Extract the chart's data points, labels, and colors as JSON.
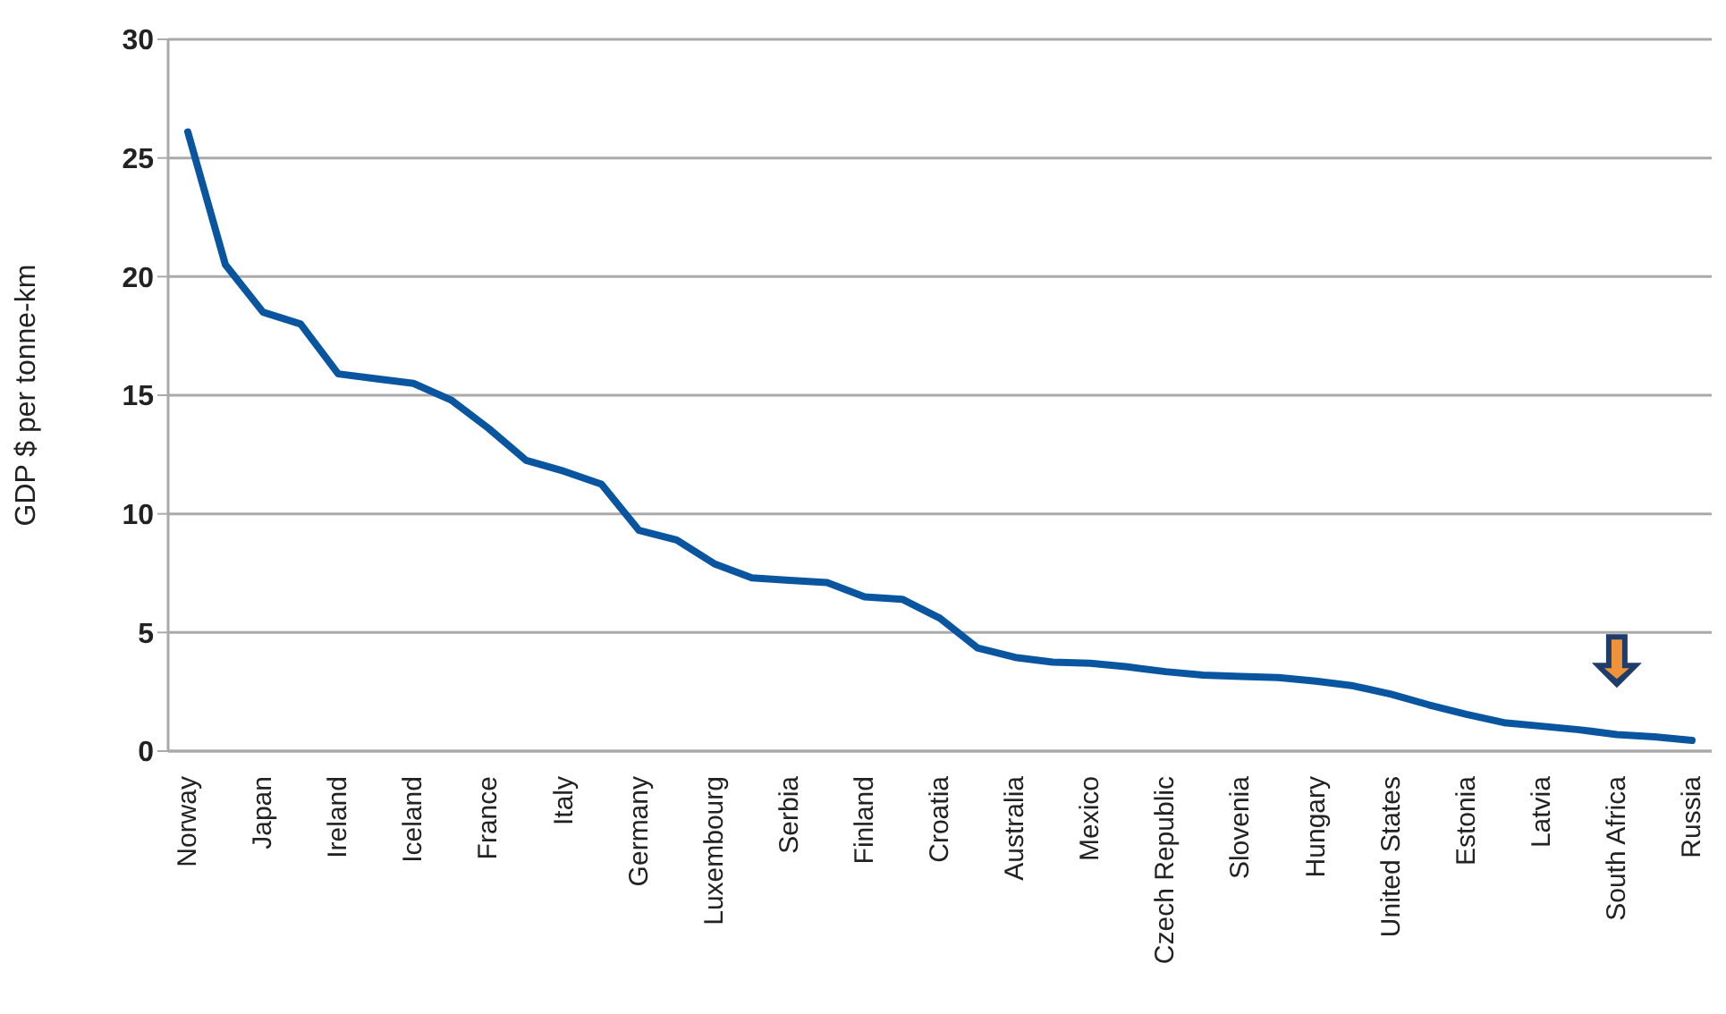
{
  "chart_data": {
    "type": "line",
    "ylabel": "GDP $ per tonne-km",
    "categories": [
      "Norway",
      null,
      "Japan",
      null,
      "Ireland",
      null,
      "Iceland",
      null,
      "France",
      null,
      "Italy",
      null,
      "Germany",
      null,
      "Luxembourg",
      null,
      "Serbia",
      null,
      "Finland",
      null,
      "Croatia",
      null,
      "Australia",
      null,
      "Mexico",
      null,
      "Czech Republic",
      null,
      "Slovenia",
      null,
      "Hungary",
      null,
      "United States",
      null,
      "Estonia",
      null,
      "Latvia",
      null,
      "South Africa",
      null,
      "Russia"
    ],
    "series": [
      {
        "color": "#0a559f",
        "values": [
          26.1,
          20.5,
          18.5,
          18.0,
          15.9,
          15.7,
          15.5,
          14.8,
          13.6,
          12.25,
          11.8,
          11.25,
          9.3,
          8.9,
          7.9,
          7.3,
          7.2,
          7.1,
          6.5,
          6.4,
          5.6,
          4.35,
          3.95,
          3.75,
          3.7,
          3.55,
          3.35,
          3.2,
          3.15,
          3.1,
          2.95,
          2.75,
          2.4,
          1.95,
          1.55,
          1.2,
          1.05,
          0.9,
          0.7,
          0.6,
          0.45
        ]
      }
    ],
    "ylim": [
      0,
      30
    ],
    "yticks": [
      0,
      5,
      10,
      15,
      20,
      25,
      30
    ],
    "grid": "y",
    "marker": "none",
    "line_style": "solid",
    "legend": false
  }
}
